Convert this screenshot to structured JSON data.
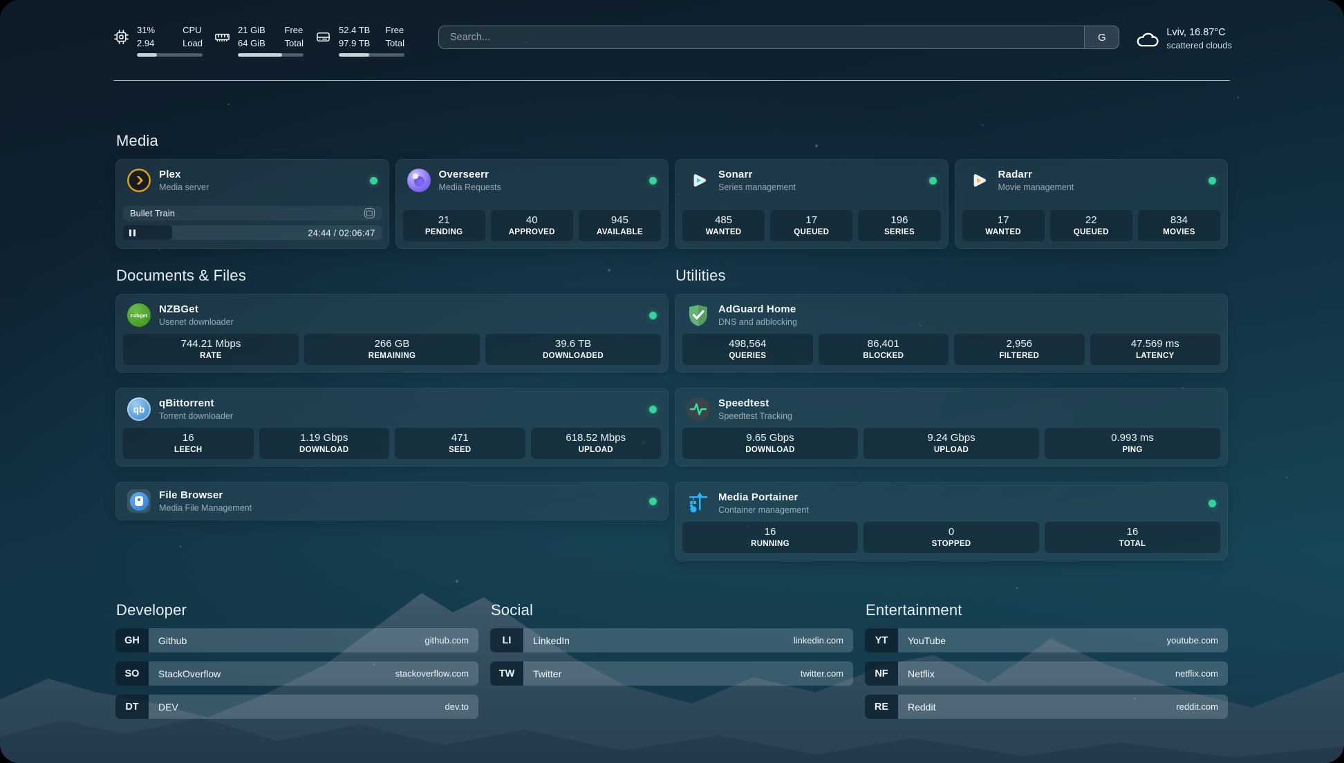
{
  "appearance": {
    "status_online_color": "#35d399",
    "background_top_color": "#0d1b27",
    "background_teal_color": "#184a5c"
  },
  "topbar": {
    "cpu": {
      "value_top": "31%",
      "value_bottom": "2.94",
      "label_top": "CPU",
      "label_bottom": "Load",
      "progress_pct": 31
    },
    "memory": {
      "value_top": "21 GiB",
      "value_bottom": "64 GiB",
      "label_top": "Free",
      "label_bottom": "Total",
      "progress_pct": 67
    },
    "disk": {
      "value_top": "52.4 TB",
      "value_bottom": "97.9 TB",
      "label_top": "Free",
      "label_bottom": "Total",
      "progress_pct": 46
    },
    "search": {
      "placeholder": "Search...",
      "engine_button_label": "G"
    },
    "weather": {
      "location_temperature": "Lviv, 16.87°C",
      "condition": "scattered clouds"
    }
  },
  "sections": {
    "media": {
      "header": "Media",
      "plex": {
        "title": "Plex",
        "subtitle": "Media server",
        "status": "online",
        "session": {
          "title": "Bullet Train",
          "time": "24:44 / 02:06:47",
          "progress_pct": 19
        }
      },
      "overseerr": {
        "title": "Overseerr",
        "subtitle": "Media Requests",
        "status": "online",
        "stats": [
          {
            "value": "21",
            "label": "PENDING"
          },
          {
            "value": "40",
            "label": "APPROVED"
          },
          {
            "value": "945",
            "label": "AVAILABLE"
          }
        ]
      },
      "sonarr": {
        "title": "Sonarr",
        "subtitle": "Series management",
        "status": "online",
        "stats": [
          {
            "value": "485",
            "label": "WANTED"
          },
          {
            "value": "17",
            "label": "QUEUED"
          },
          {
            "value": "196",
            "label": "SERIES"
          }
        ]
      },
      "radarr": {
        "title": "Radarr",
        "subtitle": "Movie management",
        "status": "online",
        "stats": [
          {
            "value": "17",
            "label": "WANTED"
          },
          {
            "value": "22",
            "label": "QUEUED"
          },
          {
            "value": "834",
            "label": "MOVIES"
          }
        ]
      }
    },
    "documents": {
      "header": "Documents & Files",
      "nzbget": {
        "title": "NZBGet",
        "subtitle": "Usenet downloader",
        "status": "online",
        "icon_text": "nzbget",
        "stats": [
          {
            "value": "744.21 Mbps",
            "label": "RATE"
          },
          {
            "value": "266 GB",
            "label": "REMAINING"
          },
          {
            "value": "39.6 TB",
            "label": "DOWNLOADED"
          }
        ]
      },
      "qbittorrent": {
        "title": "qBittorrent",
        "subtitle": "Torrent downloader",
        "status": "online",
        "icon_text": "qb",
        "stats": [
          {
            "value": "16",
            "label": "LEECH"
          },
          {
            "value": "1.19 Gbps",
            "label": "DOWNLOAD"
          },
          {
            "value": "471",
            "label": "SEED"
          },
          {
            "value": "618.52 Mbps",
            "label": "UPLOAD"
          }
        ]
      },
      "filebrowser": {
        "title": "File Browser",
        "subtitle": "Media File Management",
        "status": "online"
      }
    },
    "utilities": {
      "header": "Utilities",
      "adguard": {
        "title": "AdGuard Home",
        "subtitle": "DNS and adblocking",
        "stats": [
          {
            "value": "498,564",
            "label": "QUERIES"
          },
          {
            "value": "86,401",
            "label": "BLOCKED"
          },
          {
            "value": "2,956",
            "label": "FILTERED"
          },
          {
            "value": "47.569 ms",
            "label": "LATENCY"
          }
        ]
      },
      "speedtest": {
        "title": "Speedtest",
        "subtitle": "Speedtest Tracking",
        "stats": [
          {
            "value": "9.65 Gbps",
            "label": "DOWNLOAD"
          },
          {
            "value": "9.24 Gbps",
            "label": "UPLOAD"
          },
          {
            "value": "0.993 ms",
            "label": "PING"
          }
        ]
      },
      "portainer": {
        "title": "Media Portainer",
        "subtitle": "Container management",
        "status": "online",
        "stats": [
          {
            "value": "16",
            "label": "RUNNING"
          },
          {
            "value": "0",
            "label": "STOPPED"
          },
          {
            "value": "16",
            "label": "TOTAL"
          }
        ]
      }
    },
    "bookmarks": [
      {
        "header": "Developer",
        "items": [
          {
            "abbr": "GH",
            "name": "Github",
            "url": "github.com"
          },
          {
            "abbr": "SO",
            "name": "StackOverflow",
            "url": "stackoverflow.com"
          },
          {
            "abbr": "DT",
            "name": "DEV",
            "url": "dev.to"
          }
        ]
      },
      {
        "header": "Social",
        "items": [
          {
            "abbr": "LI",
            "name": "LinkedIn",
            "url": "linkedin.com"
          },
          {
            "abbr": "TW",
            "name": "Twitter",
            "url": "twitter.com"
          }
        ]
      },
      {
        "header": "Entertainment",
        "items": [
          {
            "abbr": "YT",
            "name": "YouTube",
            "url": "youtube.com"
          },
          {
            "abbr": "NF",
            "name": "Netflix",
            "url": "netflix.com"
          },
          {
            "abbr": "RE",
            "name": "Reddit",
            "url": "reddit.com"
          }
        ]
      }
    ]
  }
}
